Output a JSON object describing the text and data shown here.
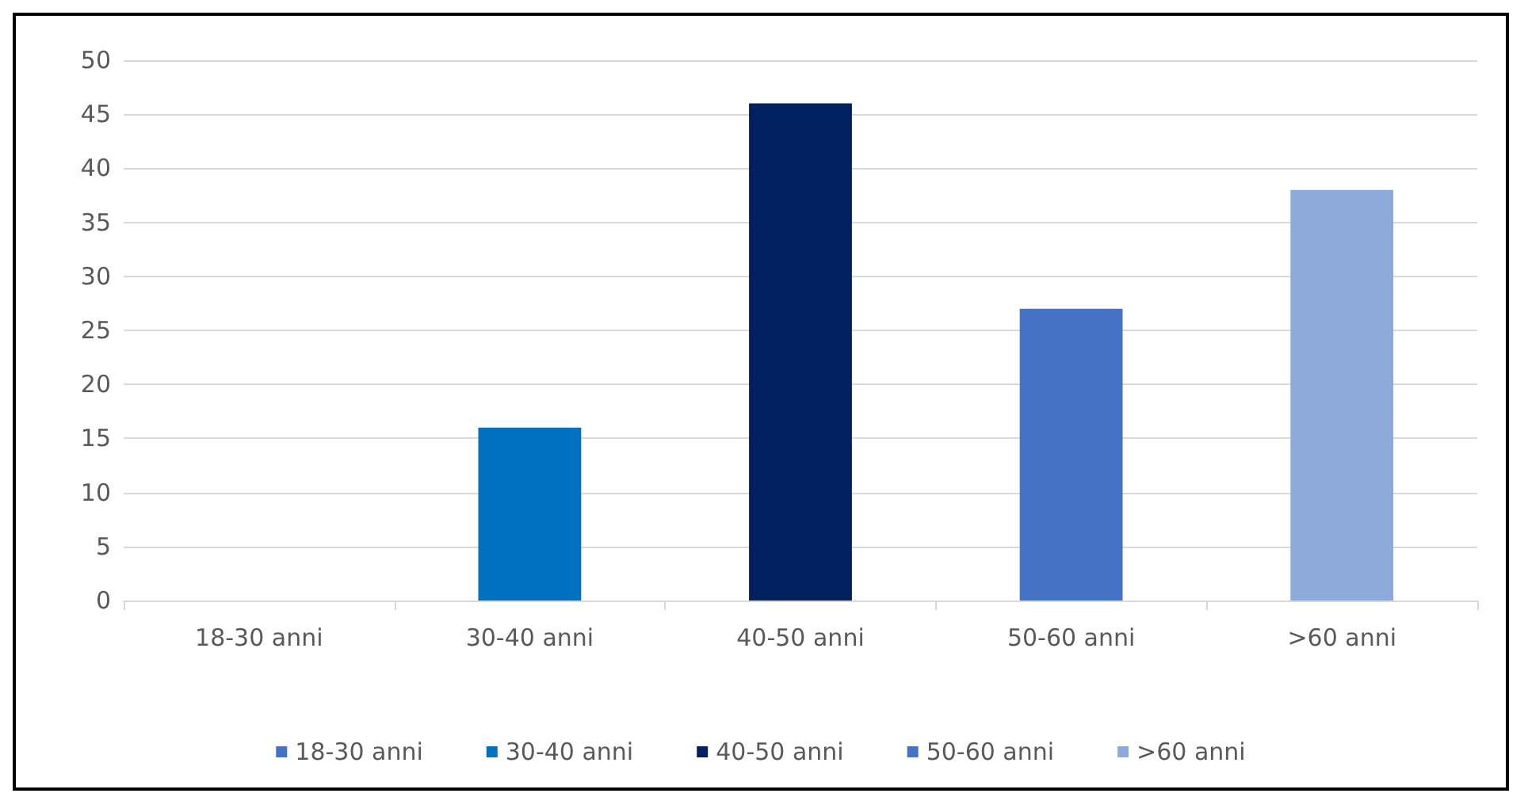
{
  "chart_data": {
    "type": "bar",
    "categories": [
      "18-30 anni",
      "30-40 anni",
      "40-50 anni",
      "50-60 anni",
      ">60 anni"
    ],
    "stacked": true,
    "series": [
      {
        "name": "18-30 anni",
        "color": "#4472c4",
        "values": [
          0,
          null,
          null,
          null,
          null
        ]
      },
      {
        "name": "30-40 anni",
        "color": "#0070c0",
        "values": [
          null,
          16,
          null,
          null,
          null
        ]
      },
      {
        "name": "40-50 anni",
        "color": "#002060",
        "values": [
          null,
          null,
          46,
          null,
          null
        ]
      },
      {
        "name": "50-60 anni",
        "color": "#4472c4",
        "values": [
          null,
          null,
          null,
          27,
          null
        ]
      },
      {
        "name": ">60 anni",
        "color": "#8eaadb",
        "values": [
          null,
          null,
          null,
          null,
          38
        ]
      }
    ],
    "ylim": [
      0,
      50
    ],
    "yticks": [
      0,
      5,
      10,
      15,
      20,
      25,
      30,
      35,
      40,
      45,
      50
    ],
    "grid": true,
    "legend": "bottom"
  }
}
